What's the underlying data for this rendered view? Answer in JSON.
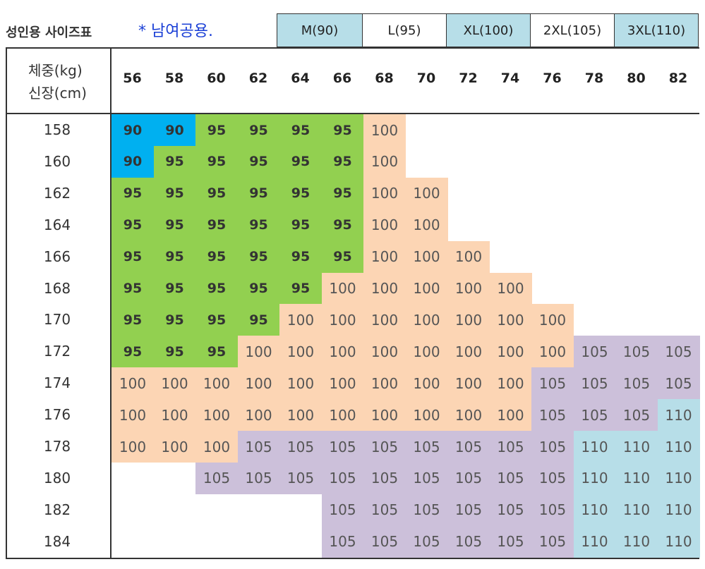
{
  "title": "성인용 사이즈표",
  "note": "* 남여공용.",
  "size_labels": [
    "M(90)",
    "L(95)",
    "XL(100)",
    "2XL(105)",
    "3XL(110)"
  ],
  "header": {
    "weight": "체중(kg)",
    "height": "신장(cm)"
  },
  "weights": [
    "56",
    "58",
    "60",
    "62",
    "64",
    "66",
    "68",
    "70",
    "72",
    "74",
    "76",
    "78",
    "80",
    "82"
  ],
  "heights": [
    "158",
    "160",
    "162",
    "164",
    "166",
    "168",
    "170",
    "172",
    "174",
    "176",
    "178",
    "180",
    "182",
    "184"
  ],
  "colors": {
    "90": "#00b0f0",
    "95": "#92d050",
    "100": "#fcd5b4",
    "105": "#ccc0da",
    "110": "#b7dee8",
    "M(90)": "#b7dee8",
    "L(95)": "#ffffff",
    "XL(100)": "#b7dee8",
    "2XL(105)": "#ffffff",
    "3XL(110)": "#b7dee8"
  },
  "grid": [
    [
      "90",
      "90",
      "95",
      "95",
      "95",
      "95",
      "100",
      "",
      "",
      "",
      "",
      "",
      "",
      ""
    ],
    [
      "90",
      "95",
      "95",
      "95",
      "95",
      "95",
      "100",
      "",
      "",
      "",
      "",
      "",
      "",
      ""
    ],
    [
      "95",
      "95",
      "95",
      "95",
      "95",
      "95",
      "100",
      "100",
      "",
      "",
      "",
      "",
      "",
      ""
    ],
    [
      "95",
      "95",
      "95",
      "95",
      "95",
      "95",
      "100",
      "100",
      "",
      "",
      "",
      "",
      "",
      ""
    ],
    [
      "95",
      "95",
      "95",
      "95",
      "95",
      "95",
      "100",
      "100",
      "100",
      "",
      "",
      "",
      "",
      ""
    ],
    [
      "95",
      "95",
      "95",
      "95",
      "95",
      "100",
      "100",
      "100",
      "100",
      "100",
      "",
      "",
      "",
      ""
    ],
    [
      "95",
      "95",
      "95",
      "95",
      "100",
      "100",
      "100",
      "100",
      "100",
      "100",
      "100",
      "",
      "",
      ""
    ],
    [
      "95",
      "95",
      "95",
      "100",
      "100",
      "100",
      "100",
      "100",
      "100",
      "100",
      "100",
      "105",
      "105",
      "105"
    ],
    [
      "100",
      "100",
      "100",
      "100",
      "100",
      "100",
      "100",
      "100",
      "100",
      "100",
      "105",
      "105",
      "105",
      "105"
    ],
    [
      "100",
      "100",
      "100",
      "100",
      "100",
      "100",
      "100",
      "100",
      "100",
      "100",
      "105",
      "105",
      "105",
      "110"
    ],
    [
      "100",
      "100",
      "100",
      "105",
      "105",
      "105",
      "105",
      "105",
      "105",
      "105",
      "105",
      "110",
      "110",
      "110"
    ],
    [
      "",
      "",
      "105",
      "105",
      "105",
      "105",
      "105",
      "105",
      "105",
      "105",
      "105",
      "110",
      "110",
      "110"
    ],
    [
      "",
      "",
      "",
      "",
      "",
      "105",
      "105",
      "105",
      "105",
      "105",
      "105",
      "110",
      "110",
      "110"
    ],
    [
      "",
      "",
      "",
      "",
      "",
      "105",
      "105",
      "105",
      "105",
      "105",
      "105",
      "110",
      "110",
      "110"
    ]
  ]
}
